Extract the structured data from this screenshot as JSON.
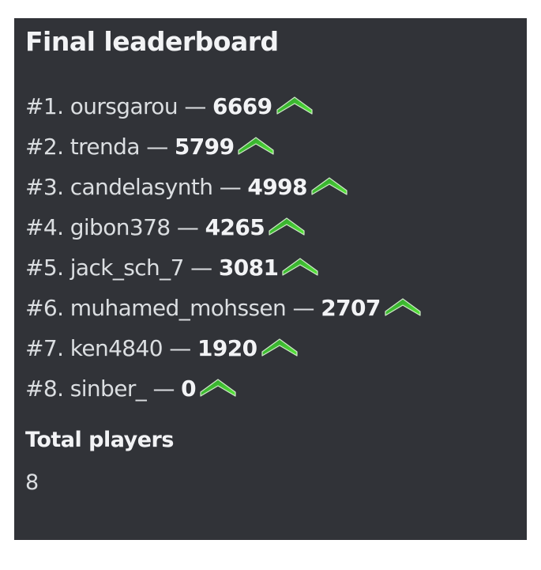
{
  "title": "Final leaderboard",
  "separator": "—",
  "rank_icon": "green-chevron-up-icon",
  "accent_color": "#3ec93a",
  "entries": [
    {
      "rank": "#1.",
      "name": "oursgarou",
      "score": "6669"
    },
    {
      "rank": "#2.",
      "name": "trenda",
      "score": "5799"
    },
    {
      "rank": "#3.",
      "name": "candelasynth",
      "score": "4998"
    },
    {
      "rank": "#4.",
      "name": "gibon378",
      "score": "4265"
    },
    {
      "rank": "#5.",
      "name": "jack_sch_7",
      "score": "3081"
    },
    {
      "rank": "#6.",
      "name": "muhamed_mohssen",
      "score": "2707"
    },
    {
      "rank": "#7.",
      "name": "ken4840",
      "score": "1920"
    },
    {
      "rank": "#8.",
      "name": "sinber_",
      "score": "0"
    }
  ],
  "total_players": {
    "label": "Total players",
    "value": "8"
  }
}
